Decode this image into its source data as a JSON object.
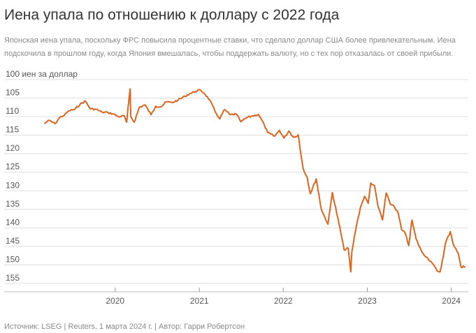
{
  "header": {
    "title": "Иена упала по отношению к доллару с 2022 года",
    "subtitle": "Японская иена упала, поскольку ФРС повысила процентные ставки, что сделало доллар США более привлекательным. Иена подскочила в прошлом году, когда Япония вмешалась, чтобы поддержать валюту, но с тех пор отказалась от своей прибыли."
  },
  "footer": {
    "source": "Источник: LSEG | Reuters, 1 марта 2024 г. | Автор: Гарри Робертсон"
  },
  "colors": {
    "line": "#d9651f",
    "grid": "#dddddd",
    "axis_text": "#555555"
  },
  "chart_data": {
    "type": "line",
    "title": "",
    "ylabel": "100 иен за доллар",
    "xlabel": "",
    "grid": true,
    "y_inverted": true,
    "ylim": [
      155,
      100
    ],
    "xlim": [
      "2019-03-01",
      "2024-03-15"
    ],
    "yticks": [
      100,
      105,
      110,
      115,
      120,
      125,
      130,
      135,
      140,
      145,
      150,
      155
    ],
    "ytick_labels": [
      "100 иен за доллар",
      "105",
      "110",
      "115",
      "120",
      "125",
      "130",
      "135",
      "140",
      "145",
      "150",
      "155"
    ],
    "xticks": [
      "2020-01-01",
      "2021-01-01",
      "2022-01-01",
      "2023-01-01",
      "2024-01-01"
    ],
    "xtick_labels": [
      "2020",
      "2021",
      "2022",
      "2023",
      "2024"
    ],
    "series": [
      {
        "points": [
          [
            "2019-03-01",
            111.8
          ],
          [
            "2019-03-20",
            111.0
          ],
          [
            "2019-04-15",
            111.9
          ],
          [
            "2019-05-05",
            110.2
          ],
          [
            "2019-05-25",
            109.6
          ],
          [
            "2019-06-15",
            108.4
          ],
          [
            "2019-07-10",
            108.0
          ],
          [
            "2019-08-01",
            106.7
          ],
          [
            "2019-08-25",
            105.8
          ],
          [
            "2019-09-15",
            107.9
          ],
          [
            "2019-10-10",
            108.0
          ],
          [
            "2019-11-05",
            108.8
          ],
          [
            "2019-12-01",
            108.9
          ],
          [
            "2019-12-25",
            109.3
          ],
          [
            "2020-01-15",
            110.0
          ],
          [
            "2020-02-10",
            109.8
          ],
          [
            "2020-02-20",
            111.5
          ],
          [
            "2020-03-06",
            102.5
          ],
          [
            "2020-03-09",
            110.0
          ],
          [
            "2020-03-24",
            111.5
          ],
          [
            "2020-04-15",
            107.5
          ],
          [
            "2020-05-10",
            106.8
          ],
          [
            "2020-06-05",
            109.5
          ],
          [
            "2020-06-25",
            107.2
          ],
          [
            "2020-07-20",
            107.3
          ],
          [
            "2020-08-10",
            106.0
          ],
          [
            "2020-09-05",
            106.2
          ],
          [
            "2020-10-01",
            105.5
          ],
          [
            "2020-10-30",
            104.5
          ],
          [
            "2020-11-20",
            103.8
          ],
          [
            "2020-12-15",
            103.2
          ],
          [
            "2021-01-06",
            102.8
          ],
          [
            "2021-01-25",
            103.9
          ],
          [
            "2021-02-15",
            105.5
          ],
          [
            "2021-03-10",
            108.6
          ],
          [
            "2021-03-31",
            110.6
          ],
          [
            "2021-04-20",
            108.1
          ],
          [
            "2021-05-15",
            109.5
          ],
          [
            "2021-06-10",
            109.3
          ],
          [
            "2021-07-01",
            111.4
          ],
          [
            "2021-07-25",
            110.3
          ],
          [
            "2021-08-20",
            109.8
          ],
          [
            "2021-09-15",
            109.4
          ],
          [
            "2021-10-10",
            112.2
          ],
          [
            "2021-10-25",
            114.3
          ],
          [
            "2021-11-24",
            115.3
          ],
          [
            "2021-12-15",
            113.7
          ],
          [
            "2022-01-04",
            115.8
          ],
          [
            "2022-01-25",
            113.9
          ],
          [
            "2022-02-15",
            115.6
          ],
          [
            "2022-03-07",
            114.9
          ],
          [
            "2022-03-15",
            118.8
          ],
          [
            "2022-03-28",
            124.0
          ],
          [
            "2022-04-15",
            126.5
          ],
          [
            "2022-04-28",
            130.8
          ],
          [
            "2022-05-24",
            126.8
          ],
          [
            "2022-06-15",
            135.0
          ],
          [
            "2022-07-14",
            139.0
          ],
          [
            "2022-08-02",
            130.5
          ],
          [
            "2022-08-31",
            138.9
          ],
          [
            "2022-09-22",
            145.9
          ],
          [
            "2022-10-10",
            145.5
          ],
          [
            "2022-10-21",
            151.9
          ],
          [
            "2022-10-26",
            146.4
          ],
          [
            "2022-11-10",
            141.0
          ],
          [
            "2022-11-15",
            139.3
          ],
          [
            "2022-12-02",
            134.5
          ],
          [
            "2022-12-20",
            131.5
          ],
          [
            "2023-01-05",
            133.4
          ],
          [
            "2023-01-16",
            127.9
          ],
          [
            "2023-02-01",
            128.6
          ],
          [
            "2023-02-15",
            133.8
          ],
          [
            "2023-03-08",
            137.9
          ],
          [
            "2023-03-24",
            130.6
          ],
          [
            "2023-04-10",
            133.5
          ],
          [
            "2023-04-25",
            134.0
          ],
          [
            "2023-05-15",
            136.0
          ],
          [
            "2023-05-30",
            140.5
          ],
          [
            "2023-06-15",
            141.5
          ],
          [
            "2023-06-30",
            144.8
          ],
          [
            "2023-07-14",
            137.9
          ],
          [
            "2023-08-01",
            143.0
          ],
          [
            "2023-08-25",
            146.4
          ],
          [
            "2023-09-15",
            147.9
          ],
          [
            "2023-10-05",
            149.1
          ],
          [
            "2023-10-31",
            151.6
          ],
          [
            "2023-11-13",
            151.9
          ],
          [
            "2023-11-28",
            147.5
          ],
          [
            "2023-12-07",
            144.0
          ],
          [
            "2023-12-28",
            141.0
          ],
          [
            "2024-01-10",
            144.5
          ],
          [
            "2024-01-31",
            146.9
          ],
          [
            "2024-02-13",
            150.7
          ],
          [
            "2024-02-22",
            150.3
          ],
          [
            "2024-02-29",
            150.6
          ]
        ]
      }
    ]
  }
}
